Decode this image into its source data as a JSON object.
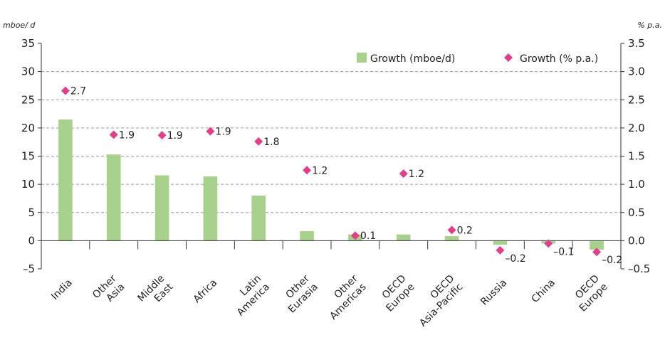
{
  "chart_data": {
    "type": "bar",
    "categories": [
      [
        "India"
      ],
      [
        "Other",
        "Asia"
      ],
      [
        "Middle",
        "East"
      ],
      [
        "Africa"
      ],
      [
        "Latin",
        "America"
      ],
      [
        "Other",
        "Eurasia"
      ],
      [
        "Other",
        "Americas"
      ],
      [
        "OECD",
        "Europe"
      ],
      [
        "OECD",
        "Asia-Pacific"
      ],
      [
        "Russia"
      ],
      [
        "China"
      ],
      [
        "OECD",
        "Europe"
      ]
    ],
    "series": [
      {
        "name": "Growth (mboe/d)",
        "type": "bar",
        "axis": "left",
        "color": "#a9d18e",
        "values": [
          21.5,
          15.3,
          11.6,
          11.4,
          8.0,
          1.7,
          1.1,
          1.1,
          0.8,
          -0.7,
          -0.5,
          -1.6
        ]
      },
      {
        "name": "Growth (% p.a.)",
        "type": "scatter",
        "axis": "right",
        "color": "#e0408a",
        "marker": "diamond",
        "values": [
          2.7,
          1.9,
          1.9,
          1.9,
          1.8,
          1.2,
          0.1,
          1.2,
          0.2,
          -0.2,
          -0.1,
          -0.2
        ],
        "point_values": [
          2.66,
          1.88,
          1.87,
          1.94,
          1.76,
          1.25,
          0.09,
          1.19,
          0.19,
          -0.17,
          -0.05,
          -0.2
        ],
        "labels": [
          "2.7",
          "1.9",
          "1.9",
          "1.9",
          "1.8",
          "1.2",
          "0.1",
          "1.2",
          "0.2",
          "–0.2",
          "–0.1",
          "–0.2"
        ]
      }
    ],
    "y_left": {
      "unit": "mboe/ d",
      "ylim": [
        -5,
        35
      ],
      "ticks": [
        -5,
        0,
        5,
        10,
        15,
        20,
        25,
        30,
        35
      ],
      "tick_labels": [
        "–5",
        "0",
        "5",
        "10",
        "15",
        "20",
        "25",
        "30",
        "35"
      ]
    },
    "y_right": {
      "unit": "% p.a.",
      "ylim": [
        -0.5,
        3.5
      ],
      "ticks": [
        -0.5,
        0,
        0.5,
        1,
        1.5,
        2,
        2.5,
        3,
        3.5
      ],
      "tick_labels": [
        "–0.5",
        "0.0",
        "0.5",
        "1.0",
        "1.5",
        "2.0",
        "2.5",
        "3.0",
        "3.5"
      ]
    },
    "grid": "horizontal-dashed",
    "legend_position": "top-right"
  }
}
